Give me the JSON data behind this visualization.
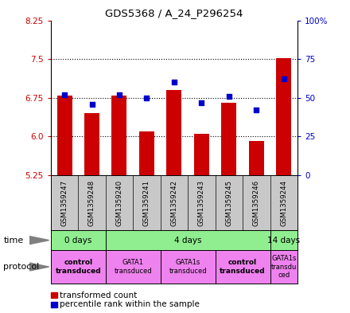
{
  "title": "GDS5368 / A_24_P296254",
  "samples": [
    "GSM1359247",
    "GSM1359248",
    "GSM1359240",
    "GSM1359241",
    "GSM1359242",
    "GSM1359243",
    "GSM1359245",
    "GSM1359246",
    "GSM1359244"
  ],
  "transformed_counts": [
    6.8,
    6.45,
    6.8,
    6.1,
    6.9,
    6.05,
    6.65,
    5.92,
    7.52
  ],
  "percentile_ranks": [
    52,
    46,
    52,
    50,
    60,
    47,
    51,
    42,
    62
  ],
  "ylim": [
    5.25,
    8.25
  ],
  "yticks_left": [
    5.25,
    6.0,
    6.75,
    7.5,
    8.25
  ],
  "yticks_right": [
    0,
    25,
    50,
    75,
    100
  ],
  "bar_color": "#cc0000",
  "dot_color": "#0000cc",
  "bar_bottom": 5.25,
  "grid_color": "#000000",
  "tick_color_left": "#cc0000",
  "tick_color_right": "#0000cc",
  "sample_bg_color": "#c8c8c8",
  "time_color": "#90ee90",
  "proto_color": "#ee82ee"
}
